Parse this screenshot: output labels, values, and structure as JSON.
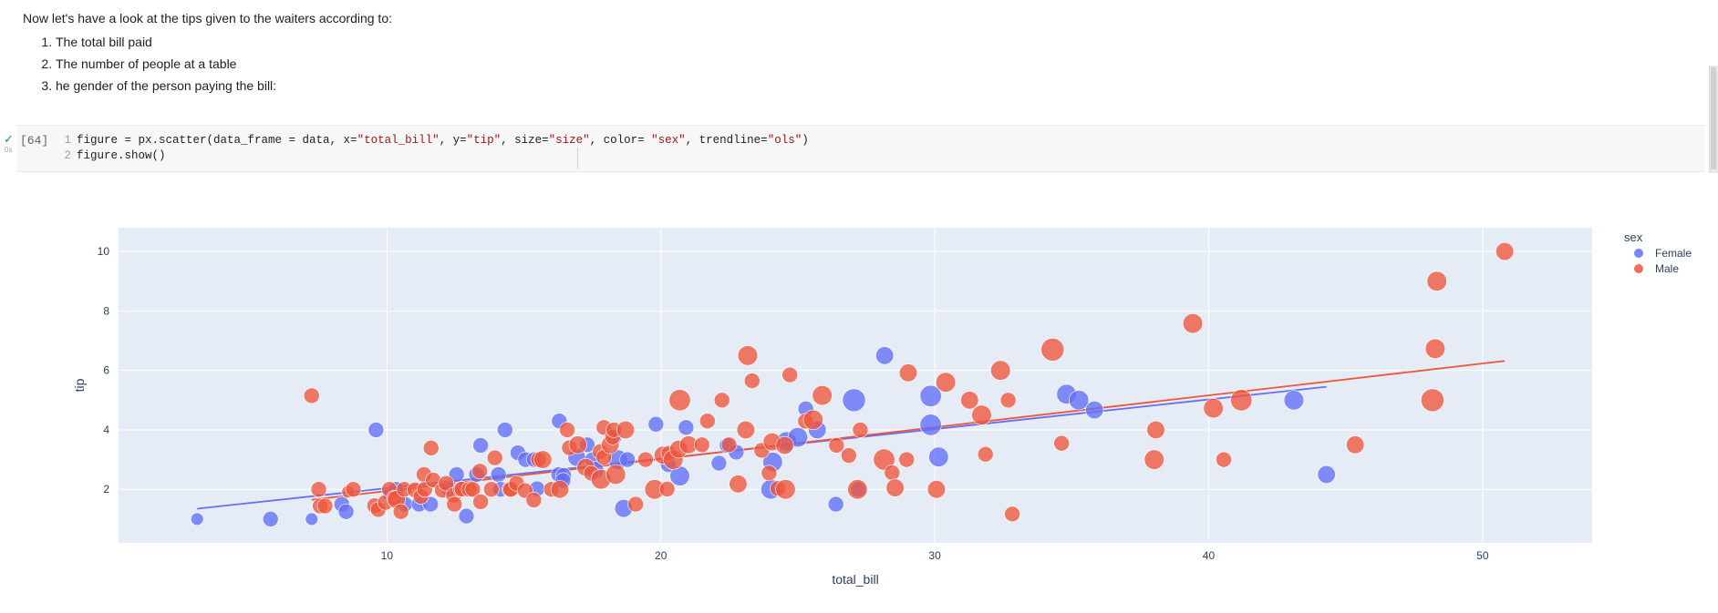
{
  "markdown": {
    "intro": "Now let's have a look at the tips given to the waiters according to:",
    "items": [
      "The total bill paid",
      "The number of people at a table",
      "he gender of the person paying the bill:"
    ]
  },
  "cell": {
    "exec_count": "[64]",
    "exec_time": "0s",
    "line_numbers": [
      "1",
      "2"
    ],
    "code_line1_parts": [
      "figure = px.scatter(data_frame = data, x=",
      "\"total_bill\"",
      ", y=",
      "\"tip\"",
      ", size=",
      "\"size\"",
      ", color= ",
      "\"sex\"",
      ", trendline=",
      "\"ols\"",
      ")"
    ],
    "code_line2": "figure.show()"
  },
  "colors": {
    "female": "#636efa",
    "male": "#ef553b",
    "plot_bg": "#e5ecf6",
    "check": "#0f9d58"
  },
  "chart_data": {
    "type": "scatter",
    "xlabel": "total_bill",
    "ylabel": "tip",
    "xlim": [
      0.2,
      54
    ],
    "ylim": [
      0.2,
      10.8
    ],
    "xticks": [
      10,
      20,
      30,
      40,
      50
    ],
    "yticks": [
      2,
      4,
      6,
      8,
      10
    ],
    "grid": true,
    "legend_title": "sex",
    "legend_position": "right",
    "size_field": "size",
    "series": [
      {
        "name": "Female",
        "points": [
          [
            3.07,
            1.0,
            1
          ],
          [
            5.75,
            1.0,
            2
          ],
          [
            7.25,
            1.0,
            1
          ],
          [
            8.35,
            1.5,
            2
          ],
          [
            8.51,
            1.25,
            2
          ],
          [
            9.6,
            4.0,
            2
          ],
          [
            10.07,
            1.83,
            1
          ],
          [
            10.33,
            2.0,
            2
          ],
          [
            10.65,
            1.5,
            2
          ],
          [
            11.17,
            1.5,
            2
          ],
          [
            11.59,
            1.5,
            2
          ],
          [
            12.26,
            2.0,
            2
          ],
          [
            12.54,
            2.5,
            2
          ],
          [
            12.9,
            1.1,
            2
          ],
          [
            13.42,
            3.48,
            2
          ],
          [
            13.27,
            2.5,
            2
          ],
          [
            14.07,
            2.5,
            2
          ],
          [
            14.15,
            2.0,
            2
          ],
          [
            14.31,
            4.0,
            2
          ],
          [
            14.78,
            3.23,
            2
          ],
          [
            15.06,
            3.0,
            2
          ],
          [
            15.48,
            2.02,
            2
          ],
          [
            15.38,
            3.0,
            2
          ],
          [
            16.27,
            2.5,
            2
          ],
          [
            16.29,
            4.3,
            2
          ],
          [
            16.45,
            2.47,
            2
          ],
          [
            16.43,
            2.3,
            2
          ],
          [
            16.93,
            3.07,
            3
          ],
          [
            17.31,
            3.5,
            2
          ],
          [
            17.51,
            3.0,
            2
          ],
          [
            17.59,
            2.64,
            3
          ],
          [
            18.29,
            3.76,
            2
          ],
          [
            18.43,
            3.0,
            4
          ],
          [
            18.64,
            1.36,
            3
          ],
          [
            18.78,
            3.0,
            2
          ],
          [
            19.82,
            4.19,
            2
          ],
          [
            20.27,
            2.83,
            2
          ],
          [
            20.69,
            2.45,
            4
          ],
          [
            20.92,
            4.08,
            2
          ],
          [
            22.12,
            2.88,
            2
          ],
          [
            22.42,
            3.48,
            2
          ],
          [
            22.75,
            3.25,
            2
          ],
          [
            24.01,
            2.0,
            4
          ],
          [
            24.08,
            2.92,
            4
          ],
          [
            24.59,
            3.61,
            4
          ],
          [
            25.0,
            3.75,
            4
          ],
          [
            25.29,
            4.71,
            2
          ],
          [
            25.71,
            4.0,
            3
          ],
          [
            26.39,
            1.5,
            2
          ],
          [
            27.05,
            5.0,
            6
          ],
          [
            27.2,
            2.0,
            2
          ],
          [
            28.17,
            6.5,
            3
          ],
          [
            29.85,
            5.14,
            5
          ],
          [
            29.85,
            4.17,
            5
          ],
          [
            30.14,
            3.09,
            4
          ],
          [
            34.81,
            5.2,
            4
          ],
          [
            35.26,
            5.0,
            4
          ],
          [
            35.83,
            4.67,
            3
          ],
          [
            43.11,
            5.0,
            4
          ],
          [
            44.3,
            2.5,
            3
          ]
        ]
      },
      {
        "name": "Male",
        "points": [
          [
            7.25,
            5.15,
            2
          ],
          [
            7.51,
            2.0,
            2
          ],
          [
            7.56,
            1.44,
            2
          ],
          [
            7.74,
            1.44,
            2
          ],
          [
            8.58,
            1.92,
            1
          ],
          [
            8.77,
            2.0,
            2
          ],
          [
            9.55,
            1.45,
            2
          ],
          [
            9.68,
            1.32,
            2
          ],
          [
            9.94,
            1.56,
            2
          ],
          [
            10.09,
            2.0,
            2
          ],
          [
            10.27,
            1.71,
            2
          ],
          [
            10.34,
            1.66,
            3
          ],
          [
            10.51,
            1.25,
            2
          ],
          [
            10.63,
            2.0,
            2
          ],
          [
            11.02,
            1.98,
            2
          ],
          [
            11.24,
            1.76,
            2
          ],
          [
            11.35,
            2.5,
            2
          ],
          [
            11.38,
            2.0,
            2
          ],
          [
            11.61,
            3.39,
            2
          ],
          [
            11.69,
            2.31,
            2
          ],
          [
            12.02,
            1.97,
            2
          ],
          [
            12.16,
            2.2,
            2
          ],
          [
            12.43,
            1.8,
            2
          ],
          [
            12.46,
            1.5,
            2
          ],
          [
            12.69,
            2.0,
            2
          ],
          [
            12.74,
            2.01,
            2
          ],
          [
            13.0,
            2.0,
            2
          ],
          [
            13.13,
            2.0,
            2
          ],
          [
            13.39,
            2.61,
            2
          ],
          [
            13.42,
            1.58,
            2
          ],
          [
            13.81,
            2.0,
            2
          ],
          [
            13.94,
            3.06,
            2
          ],
          [
            14.48,
            2.0,
            2
          ],
          [
            14.52,
            2.0,
            2
          ],
          [
            14.73,
            2.2,
            2
          ],
          [
            15.04,
            1.96,
            2
          ],
          [
            15.36,
            1.64,
            2
          ],
          [
            15.53,
            3.0,
            2
          ],
          [
            15.69,
            3.0,
            3
          ],
          [
            16.0,
            2.0,
            2
          ],
          [
            16.31,
            2.0,
            3
          ],
          [
            16.58,
            4.0,
            2
          ],
          [
            16.66,
            3.4,
            2
          ],
          [
            16.97,
            3.5,
            3
          ],
          [
            17.26,
            2.74,
            3
          ],
          [
            17.46,
            2.54,
            2
          ],
          [
            17.78,
            3.27,
            2
          ],
          [
            17.81,
            2.34,
            4
          ],
          [
            17.92,
            4.08,
            2
          ],
          [
            17.92,
            3.08,
            2
          ],
          [
            18.15,
            3.5,
            3
          ],
          [
            18.24,
            3.76,
            2
          ],
          [
            18.28,
            4.0,
            2
          ],
          [
            18.35,
            2.5,
            4
          ],
          [
            18.71,
            4.0,
            3
          ],
          [
            19.08,
            1.5,
            2
          ],
          [
            19.44,
            3.0,
            2
          ],
          [
            19.77,
            2.0,
            4
          ],
          [
            20.08,
            3.15,
            3
          ],
          [
            20.23,
            2.01,
            2
          ],
          [
            20.29,
            3.21,
            2
          ],
          [
            20.45,
            3.0,
            4
          ],
          [
            20.65,
            3.35,
            3
          ],
          [
            20.69,
            5.0,
            5
          ],
          [
            21.01,
            3.5,
            3
          ],
          [
            21.5,
            3.5,
            2
          ],
          [
            21.7,
            4.3,
            2
          ],
          [
            22.23,
            5.0,
            2
          ],
          [
            22.49,
            3.5,
            2
          ],
          [
            22.82,
            2.18,
            3
          ],
          [
            23.1,
            4.0,
            3
          ],
          [
            23.33,
            5.65,
            2
          ],
          [
            23.17,
            6.5,
            4
          ],
          [
            23.68,
            3.31,
            2
          ],
          [
            23.95,
            2.55,
            2
          ],
          [
            24.06,
            3.6,
            3
          ],
          [
            24.27,
            2.03,
            2
          ],
          [
            24.52,
            3.48,
            3
          ],
          [
            24.55,
            2.0,
            4
          ],
          [
            24.71,
            5.85,
            2
          ],
          [
            25.28,
            4.29,
            2
          ],
          [
            25.56,
            4.34,
            4
          ],
          [
            25.89,
            5.16,
            4
          ],
          [
            26.41,
            3.48,
            2
          ],
          [
            26.86,
            3.14,
            2
          ],
          [
            27.18,
            2.0,
            4
          ],
          [
            27.28,
            4.0,
            2
          ],
          [
            28.15,
            3.0,
            5
          ],
          [
            28.44,
            2.56,
            2
          ],
          [
            28.55,
            2.05,
            3
          ],
          [
            28.97,
            3.0,
            2
          ],
          [
            29.03,
            5.92,
            3
          ],
          [
            30.06,
            2.0,
            3
          ],
          [
            30.4,
            5.6,
            4
          ],
          [
            31.27,
            5.0,
            3
          ],
          [
            31.71,
            4.5,
            4
          ],
          [
            31.85,
            3.18,
            2
          ],
          [
            32.4,
            6.0,
            4
          ],
          [
            32.68,
            5.0,
            2
          ],
          [
            32.83,
            1.17,
            2
          ],
          [
            34.3,
            6.7,
            6
          ],
          [
            34.63,
            3.55,
            2
          ],
          [
            38.01,
            3.0,
            4
          ],
          [
            38.07,
            4.0,
            3
          ],
          [
            39.42,
            7.58,
            4
          ],
          [
            40.17,
            4.73,
            4
          ],
          [
            40.55,
            3.0,
            2
          ],
          [
            41.19,
            5.0,
            5
          ],
          [
            45.35,
            3.5,
            3
          ],
          [
            48.17,
            5.0,
            6
          ],
          [
            48.27,
            6.73,
            4
          ],
          [
            48.33,
            9.0,
            4
          ],
          [
            50.81,
            10.0,
            3
          ]
        ]
      }
    ],
    "trendlines": [
      {
        "name": "Female",
        "x": [
          3.07,
          44.3
        ],
        "y": [
          1.35,
          5.45
        ]
      },
      {
        "name": "Male",
        "x": [
          7.25,
          50.81
        ],
        "y": [
          1.65,
          6.32
        ]
      }
    ]
  }
}
